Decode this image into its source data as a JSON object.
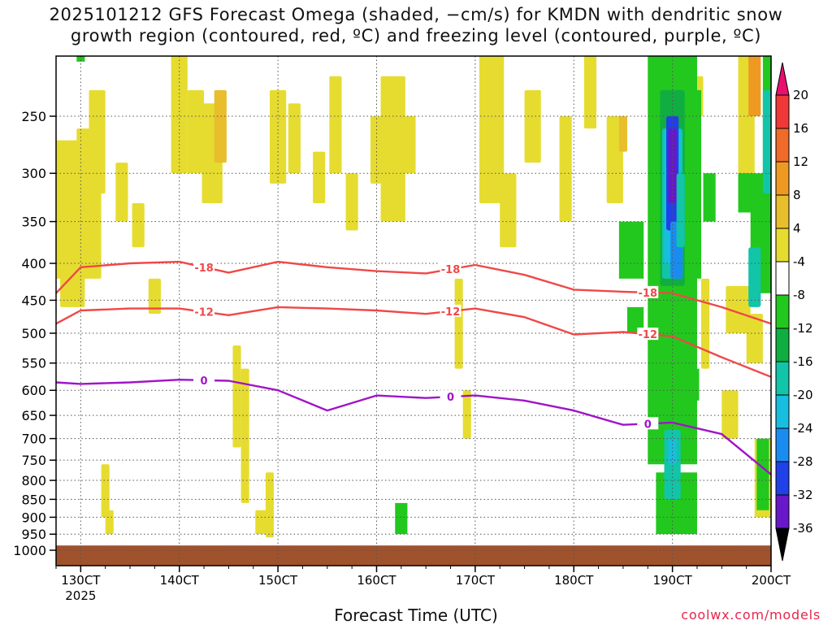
{
  "chart_data": {
    "type": "heatmap",
    "title_line1": "2025101212 GFS Forecast Omega (shaded, −cm/s) for KMDN with dendritic snow",
    "title_line2": "growth region (contoured, red, ºC) and freezing level (contoured, purple, ºC)",
    "xlabel": "Forecast Time (UTC)",
    "x_ticks": [
      "130CT",
      "140CT",
      "150CT",
      "160CT",
      "170CT",
      "180CT",
      "190CT",
      "200CT"
    ],
    "x_tick_sub": "2025",
    "y_ticks": [
      250,
      300,
      350,
      400,
      450,
      500,
      550,
      600,
      650,
      700,
      750,
      800,
      850,
      900,
      950,
      1000
    ],
    "y_scale": "log-pressure (hPa), inverted",
    "grid": true,
    "colorbar": {
      "labels": [
        20,
        16,
        12,
        8,
        4,
        -4,
        -8,
        -12,
        -16,
        -20,
        -24,
        -28,
        -32,
        -36
      ],
      "colors": [
        "#e8106e",
        "#f03838",
        "#f06a2a",
        "#ee9a22",
        "#e8be2c",
        "#e6dc30",
        "#ffffff",
        "#22c81e",
        "#10ae40",
        "#12c4a8",
        "#18bee0",
        "#1a8cf0",
        "#2040e8",
        "#6818c8",
        "#a010c8",
        "#a0a0a0",
        "#000000"
      ]
    },
    "series": [
      {
        "name": "-18",
        "color": "#f04848",
        "x": [
          "12 18Z",
          "13 00Z",
          "13 12Z",
          "14 00Z",
          "14 12Z",
          "15 00Z",
          "15 12Z",
          "16 00Z",
          "16 12Z",
          "17 00Z",
          "17 12Z",
          "18 00Z",
          "18 12Z",
          "19 00Z",
          "19 12Z",
          "20 00Z"
        ],
        "values": [
          440,
          405,
          400,
          398,
          412,
          398,
          405,
          410,
          413,
          402,
          415,
          435,
          438,
          440,
          460,
          485
        ]
      },
      {
        "name": "-12",
        "color": "#f04848",
        "x": [
          "12 18Z",
          "13 00Z",
          "13 12Z",
          "14 00Z",
          "14 12Z",
          "15 00Z",
          "15 12Z",
          "16 00Z",
          "16 12Z",
          "17 00Z",
          "17 12Z",
          "18 00Z",
          "18 12Z",
          "19 00Z",
          "19 12Z",
          "20 00Z"
        ],
        "values": [
          485,
          465,
          462,
          462,
          472,
          460,
          462,
          465,
          470,
          462,
          475,
          502,
          498,
          505,
          540,
          575
        ]
      },
      {
        "name": "0",
        "color": "#a014c8",
        "x": [
          "12 18Z",
          "13 00Z",
          "13 12Z",
          "14 00Z",
          "14 12Z",
          "15 00Z",
          "15 12Z",
          "16 00Z",
          "16 12Z",
          "17 00Z",
          "17 12Z",
          "18 00Z",
          "18 12Z",
          "19 00Z",
          "19 12Z",
          "20 00Z"
        ],
        "values": [
          585,
          588,
          585,
          580,
          582,
          600,
          640,
          610,
          615,
          610,
          620,
          640,
          670,
          665,
          690,
          785
        ]
      }
    ],
    "legend_note": "coolwx.com/models"
  }
}
